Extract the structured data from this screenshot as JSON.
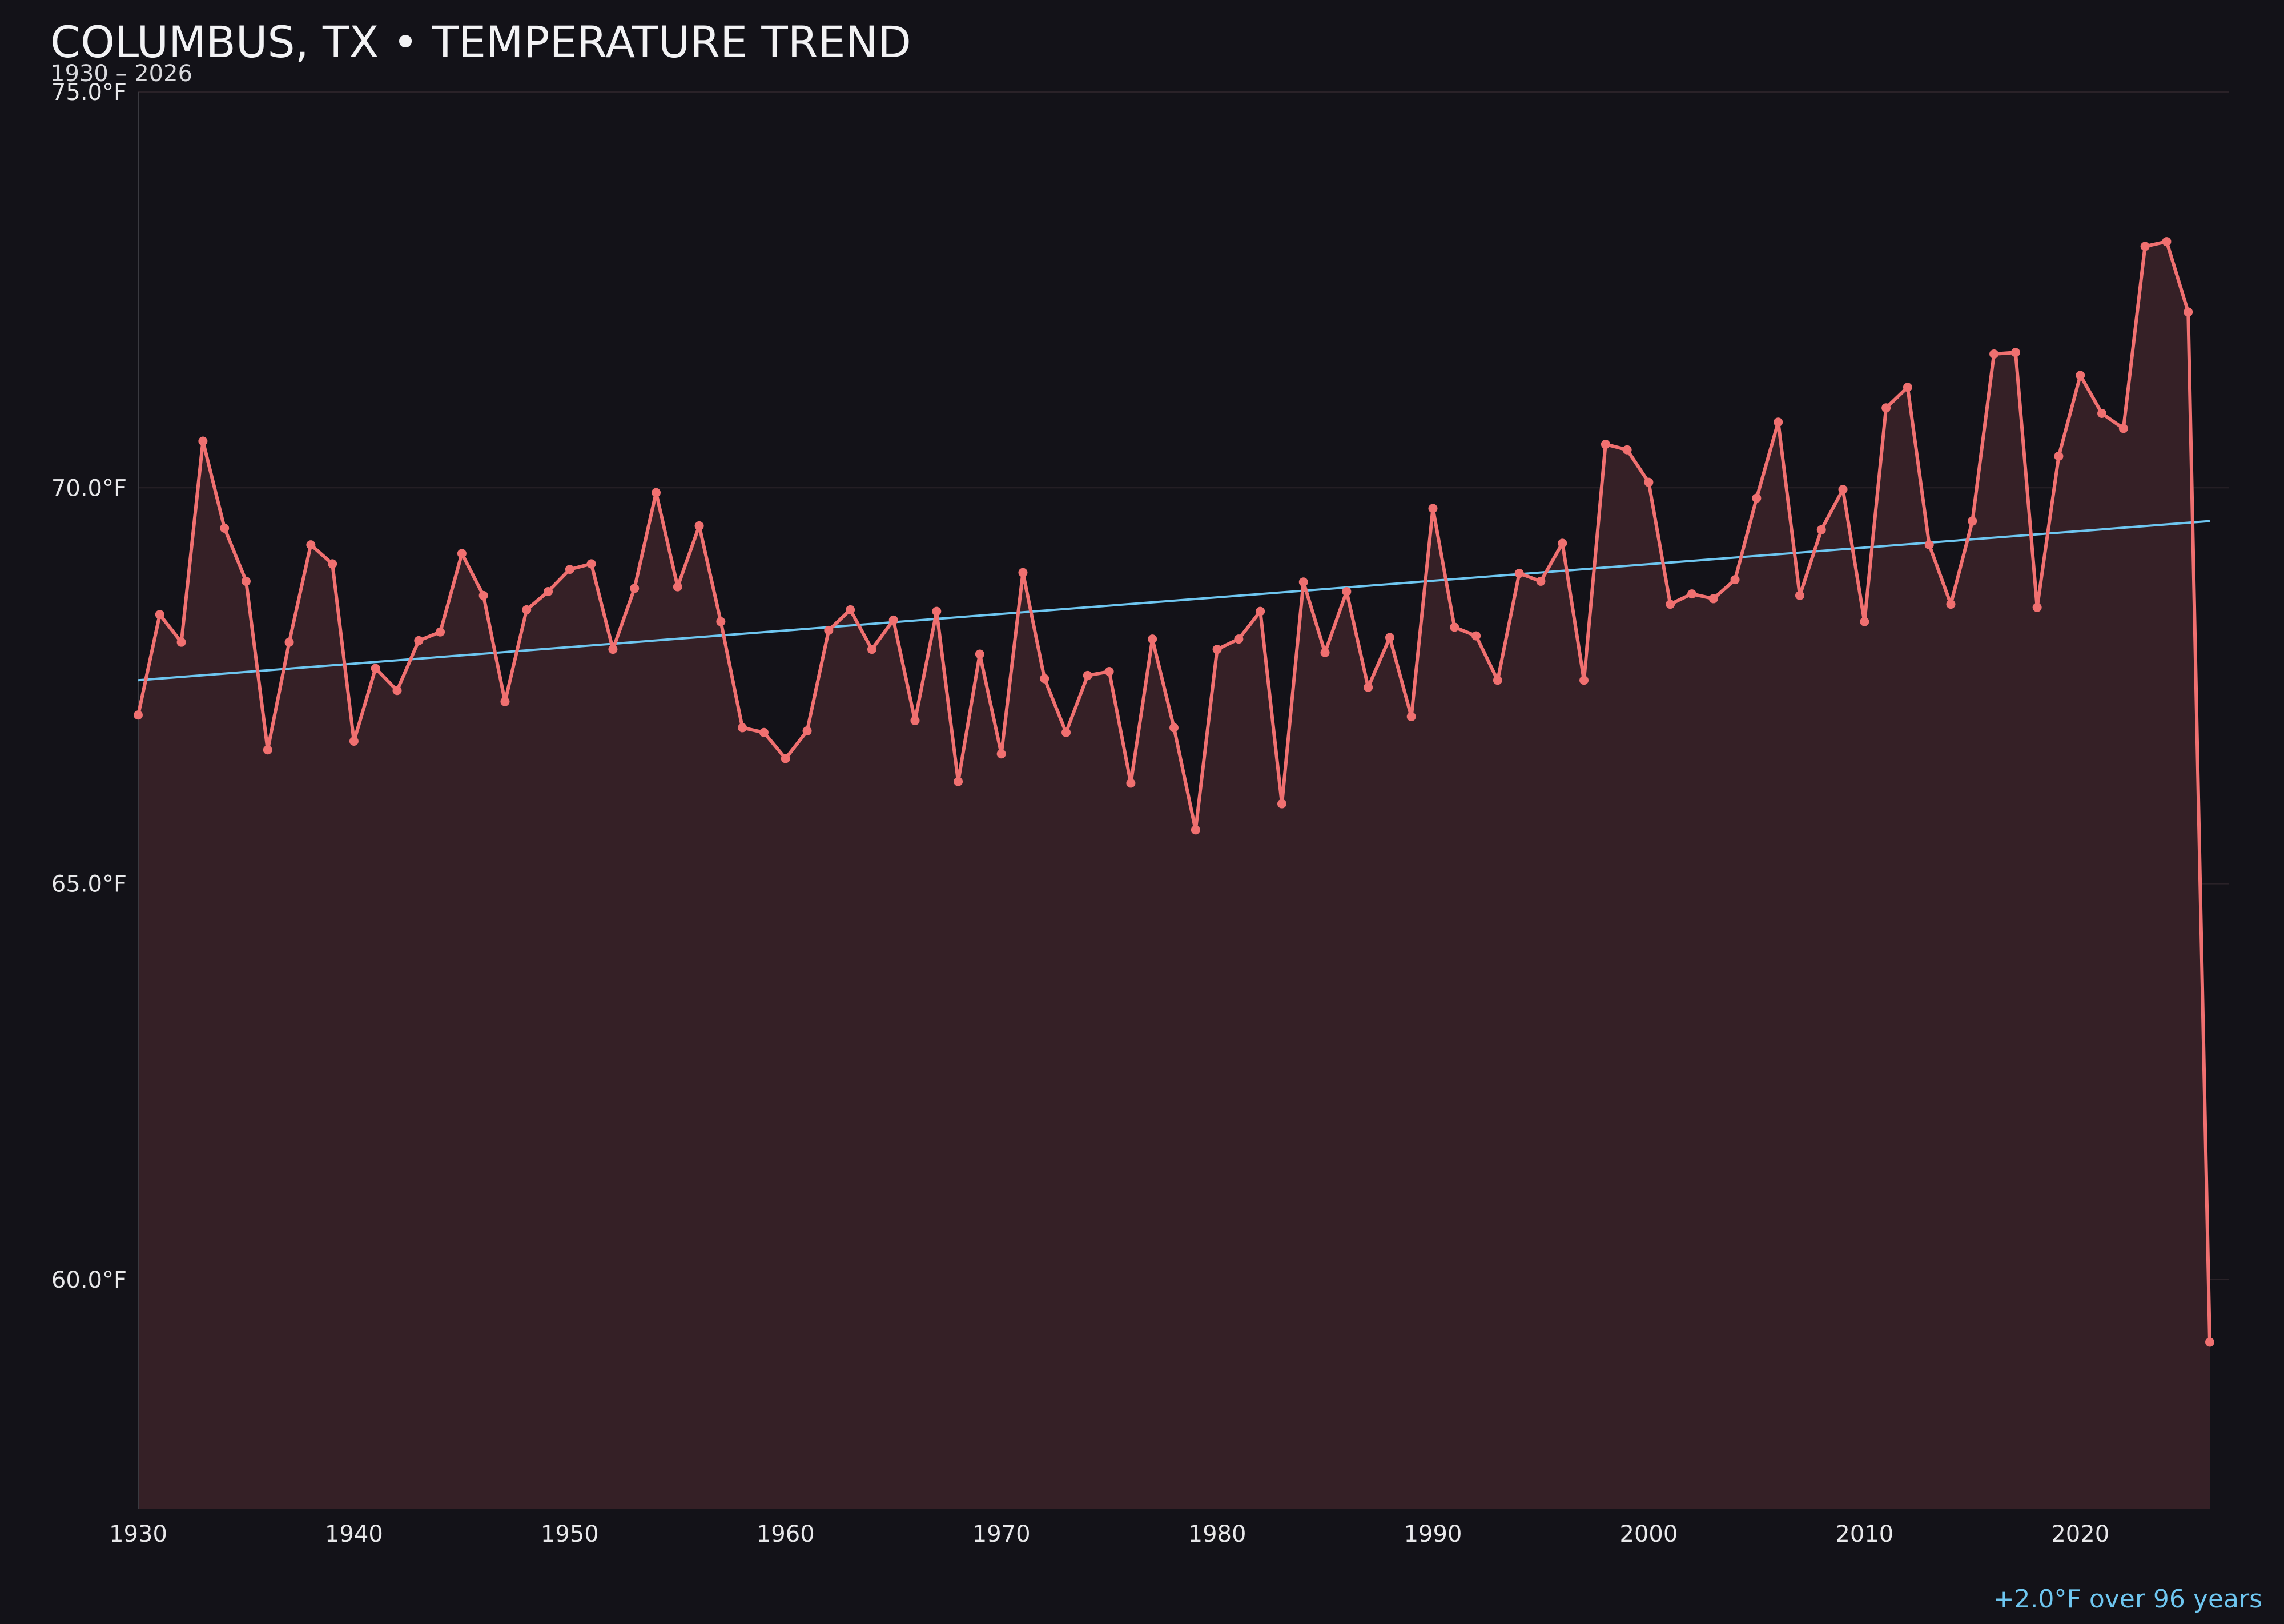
{
  "chart_data": {
    "type": "line",
    "title": "COLUMBUS, TX • TEMPERATURE TREND",
    "subtitle": "1930 – 2026",
    "annotation": "+2.0°F over 96 years",
    "xlabel": "",
    "ylabel": "",
    "xlim": [
      1930,
      2026
    ],
    "ylim": [
      57.1,
      75.0
    ],
    "x_ticks": [
      "1930",
      "1940",
      "1950",
      "1960",
      "1970",
      "1980",
      "1990",
      "2000",
      "2010",
      "2020"
    ],
    "y_ticks": [
      {
        "value": 60,
        "label": "60.0°F"
      },
      {
        "value": 65,
        "label": "65.0°F"
      },
      {
        "value": 70,
        "label": "70.0°F"
      },
      {
        "value": 75,
        "label": "75.0°F"
      }
    ],
    "grid": true,
    "area_fill": true,
    "colors": {
      "background": "#131218",
      "line": "#f07070",
      "fill": "#352026",
      "trend": "#6ec6f0",
      "grid": "#2a2228"
    },
    "x": [
      1930,
      1931,
      1932,
      1933,
      1934,
      1935,
      1936,
      1937,
      1938,
      1939,
      1940,
      1941,
      1942,
      1943,
      1944,
      1945,
      1946,
      1947,
      1948,
      1949,
      1950,
      1951,
      1952,
      1953,
      1954,
      1955,
      1956,
      1957,
      1958,
      1959,
      1960,
      1961,
      1962,
      1963,
      1964,
      1965,
      1966,
      1967,
      1968,
      1969,
      1970,
      1971,
      1972,
      1973,
      1974,
      1975,
      1976,
      1977,
      1978,
      1979,
      1980,
      1981,
      1982,
      1983,
      1984,
      1985,
      1986,
      1987,
      1988,
      1989,
      1990,
      1991,
      1992,
      1993,
      1994,
      1995,
      1996,
      1997,
      1998,
      1999,
      2000,
      2001,
      2002,
      2003,
      2004,
      2005,
      2006,
      2007,
      2008,
      2009,
      2010,
      2011,
      2012,
      2013,
      2014,
      2015,
      2016,
      2017,
      2018,
      2019,
      2020,
      2021,
      2022,
      2023,
      2024,
      2025,
      2026
    ],
    "values": [
      67.13,
      68.4,
      68.05,
      70.59,
      69.49,
      68.82,
      66.69,
      68.05,
      69.28,
      69.04,
      66.8,
      67.72,
      67.44,
      68.07,
      68.18,
      69.17,
      68.64,
      67.3,
      68.46,
      68.69,
      68.97,
      69.04,
      67.96,
      68.73,
      69.94,
      68.75,
      69.52,
      68.31,
      66.97,
      66.91,
      66.58,
      66.93,
      68.2,
      68.46,
      67.96,
      68.33,
      67.06,
      68.44,
      66.29,
      67.9,
      66.64,
      68.93,
      67.59,
      66.91,
      67.63,
      67.68,
      66.27,
      68.09,
      66.97,
      65.68,
      67.96,
      68.09,
      68.44,
      66.01,
      68.81,
      67.92,
      68.69,
      67.48,
      68.11,
      67.11,
      69.74,
      68.24,
      68.13,
      67.57,
      68.92,
      68.82,
      69.3,
      67.57,
      70.55,
      70.48,
      70.07,
      68.53,
      68.66,
      68.6,
      68.84,
      69.87,
      70.83,
      68.64,
      69.47,
      69.98,
      68.31,
      71.01,
      71.27,
      69.28,
      68.53,
      69.58,
      71.69,
      71.71,
      68.49,
      70.4,
      71.42,
      70.94,
      70.75,
      73.05,
      73.11,
      72.22,
      59.21
    ],
    "trend": {
      "start": [
        1930,
        67.57
      ],
      "end": [
        2026,
        69.58
      ]
    }
  }
}
